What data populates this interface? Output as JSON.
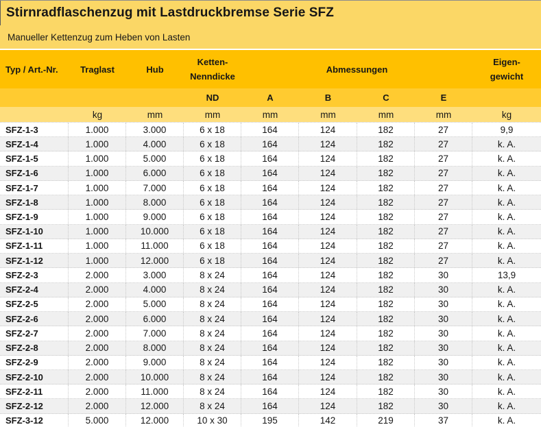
{
  "title": "Stirnradflaschenzug mit Lastdruckbremse Serie SFZ",
  "subtitle": "Manueller Kettenzug zum Heben von Lasten",
  "colors": {
    "title_band": "#FBD766",
    "header": "#FFC000",
    "subheader": "#FFCB30",
    "units": "#FEDE7D",
    "row_alt": "#F0F0F0",
    "dotted_grid": "#C9C9C9",
    "text": "#161616"
  },
  "table": {
    "header": {
      "col_typ": "Typ / Art.-Nr.",
      "col_traglast": "Traglast",
      "col_hub": "Hub",
      "col_ketten": "Ketten-\nNenndicke",
      "col_abmessungen": "Abmessungen",
      "col_eigengewicht": "Eigen-\ngewicht"
    },
    "subheader": [
      "",
      "",
      "",
      "ND",
      "A",
      "B",
      "C",
      "E",
      ""
    ],
    "units": [
      "",
      "kg",
      "mm",
      "mm",
      "mm",
      "mm",
      "mm",
      "mm",
      "kg"
    ],
    "rows": [
      [
        "SFZ-1-3",
        "1.000",
        "3.000",
        "6 x 18",
        "164",
        "124",
        "182",
        "27",
        "9,9"
      ],
      [
        "SFZ-1-4",
        "1.000",
        "4.000",
        "6 x 18",
        "164",
        "124",
        "182",
        "27",
        "k. A."
      ],
      [
        "SFZ-1-5",
        "1.000",
        "5.000",
        "6 x 18",
        "164",
        "124",
        "182",
        "27",
        "k. A."
      ],
      [
        "SFZ-1-6",
        "1.000",
        "6.000",
        "6 x 18",
        "164",
        "124",
        "182",
        "27",
        "k. A."
      ],
      [
        "SFZ-1-7",
        "1.000",
        "7.000",
        "6 x 18",
        "164",
        "124",
        "182",
        "27",
        "k. A."
      ],
      [
        "SFZ-1-8",
        "1.000",
        "8.000",
        "6 x 18",
        "164",
        "124",
        "182",
        "27",
        "k. A."
      ],
      [
        "SFZ-1-9",
        "1.000",
        "9.000",
        "6 x 18",
        "164",
        "124",
        "182",
        "27",
        "k. A."
      ],
      [
        "SFZ-1-10",
        "1.000",
        "10.000",
        "6 x 18",
        "164",
        "124",
        "182",
        "27",
        "k. A."
      ],
      [
        "SFZ-1-11",
        "1.000",
        "11.000",
        "6 x 18",
        "164",
        "124",
        "182",
        "27",
        "k. A."
      ],
      [
        "SFZ-1-12",
        "1.000",
        "12.000",
        "6 x 18",
        "164",
        "124",
        "182",
        "27",
        "k. A."
      ],
      [
        "SFZ-2-3",
        "2.000",
        "3.000",
        "8 x 24",
        "164",
        "124",
        "182",
        "30",
        "13,9"
      ],
      [
        "SFZ-2-4",
        "2.000",
        "4.000",
        "8 x 24",
        "164",
        "124",
        "182",
        "30",
        "k. A."
      ],
      [
        "SFZ-2-5",
        "2.000",
        "5.000",
        "8 x 24",
        "164",
        "124",
        "182",
        "30",
        "k. A."
      ],
      [
        "SFZ-2-6",
        "2.000",
        "6.000",
        "8 x 24",
        "164",
        "124",
        "182",
        "30",
        "k. A."
      ],
      [
        "SFZ-2-7",
        "2.000",
        "7.000",
        "8 x 24",
        "164",
        "124",
        "182",
        "30",
        "k. A."
      ],
      [
        "SFZ-2-8",
        "2.000",
        "8.000",
        "8 x 24",
        "164",
        "124",
        "182",
        "30",
        "k. A."
      ],
      [
        "SFZ-2-9",
        "2.000",
        "9.000",
        "8 x 24",
        "164",
        "124",
        "182",
        "30",
        "k. A."
      ],
      [
        "SFZ-2-10",
        "2.000",
        "10.000",
        "8 x 24",
        "164",
        "124",
        "182",
        "30",
        "k. A."
      ],
      [
        "SFZ-2-11",
        "2.000",
        "11.000",
        "8 x 24",
        "164",
        "124",
        "182",
        "30",
        "k. A."
      ],
      [
        "SFZ-2-12",
        "2.000",
        "12.000",
        "8 x 24",
        "164",
        "124",
        "182",
        "30",
        "k. A."
      ],
      [
        "SFZ-3-12",
        "5.000",
        "12.000",
        "10 x 30",
        "195",
        "142",
        "219",
        "37",
        "k. A."
      ]
    ]
  }
}
